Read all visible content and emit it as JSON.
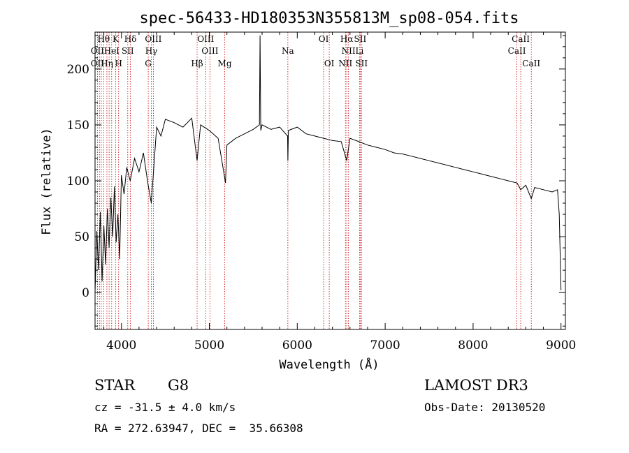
{
  "chart_data": {
    "type": "line",
    "title": "spec-56433-HD180353N355813M_sp08-054.fits",
    "xlabel": "Wavelength (Å)",
    "ylabel": "Flux (relative)",
    "xlim": [
      3700,
      9050
    ],
    "ylim": [
      -33,
      233
    ],
    "xticks": [
      4000,
      5000,
      6000,
      7000,
      8000,
      9000
    ],
    "yticks": [
      0,
      50,
      100,
      150,
      200
    ],
    "grid": false,
    "series": [
      {
        "name": "spectrum",
        "x": [
          3700,
          3720,
          3740,
          3760,
          3780,
          3800,
          3820,
          3840,
          3860,
          3880,
          3900,
          3920,
          3940,
          3960,
          3980,
          4000,
          4030,
          4060,
          4100,
          4150,
          4200,
          4250,
          4300,
          4340,
          4400,
          4450,
          4500,
          4600,
          4700,
          4800,
          4861,
          4900,
          5000,
          5100,
          5170,
          5183,
          5200,
          5300,
          5400,
          5500,
          5570,
          5577,
          5585,
          5600,
          5700,
          5800,
          5890,
          5893,
          5900,
          6000,
          6100,
          6200,
          6300,
          6400,
          6500,
          6563,
          6600,
          6700,
          6800,
          6900,
          7000,
          7100,
          7200,
          7300,
          7400,
          7500,
          7600,
          7700,
          7800,
          7900,
          8000,
          8100,
          8200,
          8300,
          8400,
          8500,
          8542,
          8600,
          8662,
          8700,
          8800,
          8900,
          8960,
          8980,
          9000
        ],
        "y": [
          0,
          55,
          20,
          72,
          10,
          60,
          25,
          75,
          40,
          85,
          50,
          95,
          45,
          70,
          30,
          105,
          88,
          112,
          100,
          120,
          108,
          125,
          98,
          80,
          148,
          140,
          155,
          152,
          148,
          156,
          118,
          150,
          145,
          138,
          105,
          98,
          132,
          138,
          142,
          146,
          150,
          230,
          145,
          150,
          146,
          148,
          140,
          118,
          145,
          148,
          142,
          140,
          138,
          136,
          135,
          118,
          138,
          135,
          132,
          130,
          128,
          125,
          124,
          122,
          120,
          118,
          116,
          114,
          112,
          110,
          108,
          106,
          104,
          102,
          100,
          98,
          92,
          96,
          84,
          94,
          92,
          90,
          92,
          70,
          2
        ]
      }
    ],
    "lines_top": [
      {
        "label": "Hθ",
        "x": 3798
      },
      {
        "label": "K",
        "x": 3934
      },
      {
        "label": "Hδ",
        "x": 4102
      },
      {
        "label": "OIII",
        "x": 4363
      },
      {
        "label": "OIII",
        "x": 4959
      },
      {
        "label": "OI",
        "x": 6300
      },
      {
        "label": "Hα",
        "x": 6563
      },
      {
        "label": "SII",
        "x": 6716
      },
      {
        "label": "CaII",
        "x": 8542
      }
    ],
    "lines_mid": [
      {
        "label": "OII",
        "x": 3727
      },
      {
        "label": "HeI",
        "x": 3889
      },
      {
        "label": "SII",
        "x": 4072
      },
      {
        "label": "Hγ",
        "x": 4340
      },
      {
        "label": "OIII",
        "x": 5007
      },
      {
        "label": "Na",
        "x": 5893
      },
      {
        "label": "NII",
        "x": 6583
      },
      {
        "label": "Li",
        "x": 6708
      },
      {
        "label": "CaII",
        "x": 8498
      }
    ],
    "lines_low": [
      {
        "label": "OII",
        "x": 3727
      },
      {
        "label": "Hη",
        "x": 3835
      },
      {
        "label": "H",
        "x": 3968
      },
      {
        "label": "G",
        "x": 4305
      },
      {
        "label": "Hβ",
        "x": 4861
      },
      {
        "label": "Mg",
        "x": 5175
      },
      {
        "label": "OI",
        "x": 6364
      },
      {
        "label": "NII",
        "x": 6548
      },
      {
        "label": "SII",
        "x": 6731
      },
      {
        "label": "CaII",
        "x": 8662
      }
    ],
    "extra_lines": [
      3750,
      3771,
      3860
    ]
  },
  "info": {
    "object_class": "STAR",
    "subclass": "G8",
    "survey": "LAMOST DR3",
    "cz": "cz = -31.5 ± 4.0 km/s",
    "obs_date": "Obs-Date: 20130520",
    "coords": "RA = 272.63947, DEC =  35.66308"
  },
  "colors": {
    "line_markers": "#cc0000",
    "spectrum": "#000000"
  }
}
